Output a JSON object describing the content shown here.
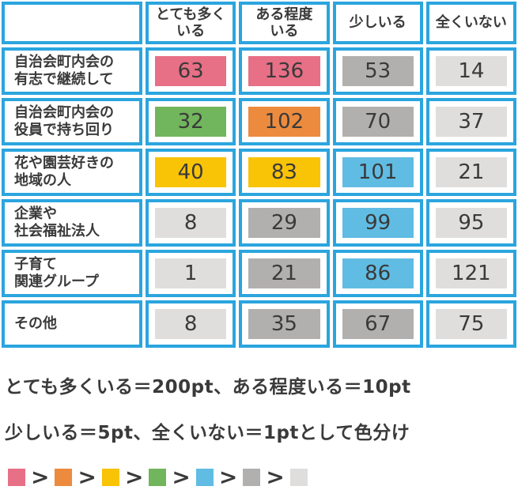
{
  "colors": {
    "border_blue": "#2BA5DE",
    "text": "#3A3A3A",
    "pink": "#E76F86",
    "orange": "#EC8B3E",
    "yellow": "#F9C306",
    "green": "#71B55C",
    "blue": "#60BCE3",
    "gray": "#B2B0AF",
    "light_gray": "#DFDEDC"
  },
  "table": {
    "corner": "",
    "column_headers": [
      {
        "label": "とても多くいる",
        "lines": [
          "とても多く",
          "いる"
        ]
      },
      {
        "label": "ある程度いる",
        "lines": [
          "ある程度",
          "いる"
        ]
      },
      {
        "label": "少しいる",
        "lines": [
          "少しいる"
        ]
      },
      {
        "label": "全くいない",
        "lines": [
          "全くいない"
        ]
      }
    ],
    "rows": [
      {
        "label": "自治会町内会の有志で継続して",
        "label_lines": [
          "自治会町内会の",
          "有志で継続して"
        ],
        "cells": [
          {
            "value": "63",
            "color": "pink"
          },
          {
            "value": "136",
            "color": "pink"
          },
          {
            "value": "53",
            "color": "gray"
          },
          {
            "value": "14",
            "color": "light_gray"
          }
        ]
      },
      {
        "label": "自治会町内会の役員で持ち回り",
        "label_lines": [
          "自治会町内会の",
          "役員で持ち回り"
        ],
        "cells": [
          {
            "value": "32",
            "color": "green"
          },
          {
            "value": "102",
            "color": "orange"
          },
          {
            "value": "70",
            "color": "gray"
          },
          {
            "value": "37",
            "color": "light_gray"
          }
        ]
      },
      {
        "label": "花や園芸好きの地域の人",
        "label_lines": [
          "花や園芸好きの",
          "地域の人"
        ],
        "cells": [
          {
            "value": "40",
            "color": "yellow"
          },
          {
            "value": "83",
            "color": "yellow"
          },
          {
            "value": "101",
            "color": "blue"
          },
          {
            "value": "21",
            "color": "light_gray"
          }
        ]
      },
      {
        "label": "企業や社会福祉法人",
        "label_lines": [
          "企業や",
          "社会福祉法人"
        ],
        "cells": [
          {
            "value": "8",
            "color": "light_gray"
          },
          {
            "value": "29",
            "color": "gray"
          },
          {
            "value": "99",
            "color": "blue"
          },
          {
            "value": "95",
            "color": "light_gray"
          }
        ]
      },
      {
        "label": "子育て関連グループ",
        "label_lines": [
          "子育て",
          "関連グループ"
        ],
        "cells": [
          {
            "value": "1",
            "color": "light_gray"
          },
          {
            "value": "21",
            "color": "gray"
          },
          {
            "value": "86",
            "color": "blue"
          },
          {
            "value": "121",
            "color": "light_gray"
          }
        ]
      },
      {
        "label": "その他",
        "label_lines": [
          "その他"
        ],
        "cells": [
          {
            "value": "8",
            "color": "light_gray"
          },
          {
            "value": "35",
            "color": "gray"
          },
          {
            "value": "67",
            "color": "gray"
          },
          {
            "value": "75",
            "color": "light_gray"
          }
        ]
      }
    ]
  },
  "notes": [
    "とても多くいる＝200pt、ある程度いる＝10pt",
    "少しいる＝5pt、全くいない＝1ptとして色分け"
  ],
  "legend": {
    "separator": ">",
    "order": [
      "pink",
      "orange",
      "yellow",
      "green",
      "blue",
      "gray",
      "light_gray"
    ]
  },
  "chart_data": {
    "type": "table",
    "title": "",
    "categories": [
      "とても多くいる",
      "ある程度いる",
      "少しいる",
      "全くいない"
    ],
    "rows": [
      "自治会町内会の有志で継続して",
      "自治会町内会の役員で持ち回り",
      "花や園芸好きの地域の人",
      "企業や社会福祉法人",
      "子育て関連グループ",
      "その他"
    ],
    "values": [
      [
        63,
        136,
        53,
        14
      ],
      [
        32,
        102,
        70,
        37
      ],
      [
        40,
        83,
        101,
        21
      ],
      [
        8,
        29,
        99,
        95
      ],
      [
        1,
        21,
        86,
        121
      ],
      [
        8,
        35,
        67,
        75
      ]
    ],
    "cell_colors": [
      [
        "pink",
        "pink",
        "gray",
        "light_gray"
      ],
      [
        "green",
        "orange",
        "gray",
        "light_gray"
      ],
      [
        "yellow",
        "yellow",
        "blue",
        "light_gray"
      ],
      [
        "light_gray",
        "gray",
        "blue",
        "light_gray"
      ],
      [
        "light_gray",
        "gray",
        "blue",
        "light_gray"
      ],
      [
        "light_gray",
        "gray",
        "gray",
        "light_gray"
      ]
    ],
    "weighting_notes": [
      "とても多くいる＝200pt、ある程度いる＝10pt",
      "少しいる＝5pt、全くいない＝1ptとして色分け"
    ],
    "color_rank_order": [
      "pink",
      "orange",
      "yellow",
      "green",
      "blue",
      "gray",
      "light_gray"
    ]
  }
}
